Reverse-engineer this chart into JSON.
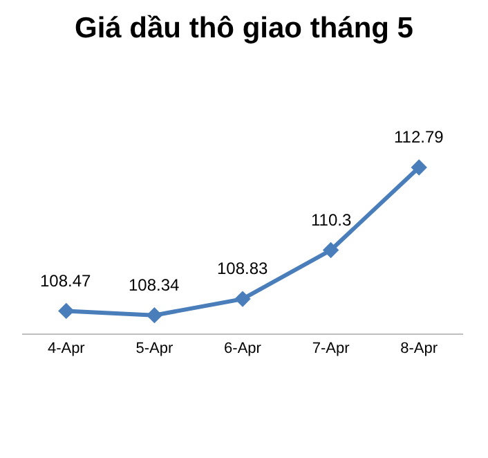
{
  "chart_data": {
    "type": "line",
    "title": "Giá dầu thô giao tháng 5",
    "categories": [
      "4-Apr",
      "5-Apr",
      "6-Apr",
      "7-Apr",
      "8-Apr"
    ],
    "series": [
      {
        "color": "#4a7ebb",
        "values": [
          108.47,
          108.34,
          108.83,
          110.3,
          112.79
        ]
      }
    ],
    "tick_labels": "x",
    "data_labels": true,
    "legend": false,
    "marker": "diamond",
    "line_style": "solid"
  }
}
